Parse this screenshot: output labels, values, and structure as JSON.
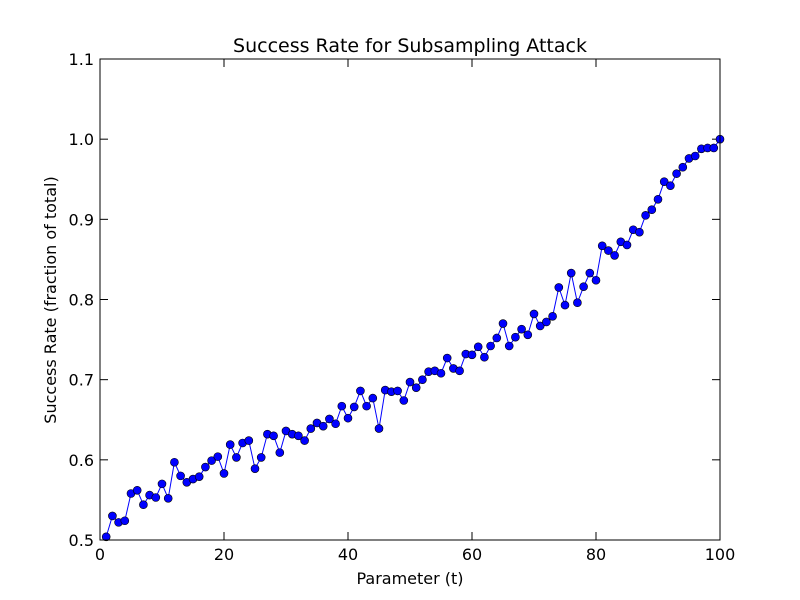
{
  "chart_data": {
    "type": "line",
    "title": "Success Rate for Subsampling Attack",
    "xlabel": "Parameter (t)",
    "ylabel": "Success Rate (fraction of total)",
    "xlim": [
      0,
      100
    ],
    "ylim": [
      0.5,
      1.1
    ],
    "xticks": [
      "0",
      "20",
      "40",
      "60",
      "80",
      "100"
    ],
    "yticks": [
      "0.5",
      "0.6",
      "0.7",
      "0.8",
      "0.9",
      "1.0",
      "1.1"
    ],
    "grid": false,
    "series": [
      {
        "color": "#0000ff",
        "marker": "circle",
        "x": [
          1,
          2,
          3,
          4,
          5,
          6,
          7,
          8,
          9,
          10,
          11,
          12,
          13,
          14,
          15,
          16,
          17,
          18,
          19,
          20,
          21,
          22,
          23,
          24,
          25,
          26,
          27,
          28,
          29,
          30,
          31,
          32,
          33,
          34,
          35,
          36,
          37,
          38,
          39,
          40,
          41,
          42,
          43,
          44,
          45,
          46,
          47,
          48,
          49,
          50,
          51,
          52,
          53,
          54,
          55,
          56,
          57,
          58,
          59,
          60,
          61,
          62,
          63,
          64,
          65,
          66,
          67,
          68,
          69,
          70,
          71,
          72,
          73,
          74,
          75,
          76,
          77,
          78,
          79,
          80,
          81,
          82,
          83,
          84,
          85,
          86,
          87,
          88,
          89,
          90,
          91,
          92,
          93,
          94,
          95,
          96,
          97,
          98,
          99,
          100
        ],
        "values": [
          0.504,
          0.53,
          0.522,
          0.524,
          0.558,
          0.562,
          0.544,
          0.556,
          0.553,
          0.57,
          0.552,
          0.597,
          0.58,
          0.572,
          0.576,
          0.579,
          0.591,
          0.599,
          0.604,
          0.583,
          0.619,
          0.603,
          0.621,
          0.624,
          0.589,
          0.603,
          0.632,
          0.63,
          0.609,
          0.636,
          0.632,
          0.63,
          0.624,
          0.639,
          0.646,
          0.642,
          0.651,
          0.645,
          0.667,
          0.652,
          0.666,
          0.686,
          0.667,
          0.677,
          0.639,
          0.687,
          0.685,
          0.686,
          0.674,
          0.697,
          0.69,
          0.7,
          0.71,
          0.711,
          0.708,
          0.727,
          0.714,
          0.711,
          0.732,
          0.731,
          0.741,
          0.728,
          0.742,
          0.752,
          0.77,
          0.742,
          0.753,
          0.763,
          0.756,
          0.782,
          0.767,
          0.772,
          0.779,
          0.815,
          0.793,
          0.833,
          0.796,
          0.816,
          0.833,
          0.824,
          0.867,
          0.861,
          0.855,
          0.872,
          0.868,
          0.887,
          0.884,
          0.905,
          0.912,
          0.925,
          0.947,
          0.942,
          0.957,
          0.965,
          0.976,
          0.979,
          0.988,
          0.989,
          0.989,
          1.0
        ]
      }
    ]
  }
}
